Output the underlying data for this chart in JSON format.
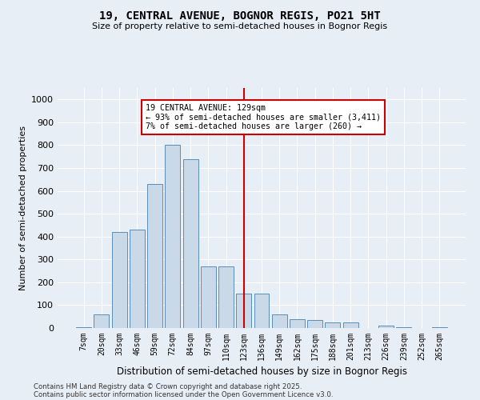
{
  "title1": "19, CENTRAL AVENUE, BOGNOR REGIS, PO21 5HT",
  "title2": "Size of property relative to semi-detached houses in Bognor Regis",
  "xlabel": "Distribution of semi-detached houses by size in Bognor Regis",
  "ylabel": "Number of semi-detached properties",
  "categories": [
    "7sqm",
    "20sqm",
    "33sqm",
    "46sqm",
    "59sqm",
    "72sqm",
    "84sqm",
    "97sqm",
    "110sqm",
    "123sqm",
    "136sqm",
    "149sqm",
    "162sqm",
    "175sqm",
    "188sqm",
    "201sqm",
    "213sqm",
    "226sqm",
    "239sqm",
    "252sqm",
    "265sqm"
  ],
  "values": [
    2,
    60,
    420,
    430,
    630,
    800,
    740,
    270,
    270,
    150,
    150,
    60,
    40,
    35,
    25,
    25,
    0,
    10,
    5,
    0,
    2
  ],
  "bar_color": "#c9d9e8",
  "bar_edge_color": "#5b8db8",
  "vline_x": 9,
  "vline_color": "#cc0000",
  "annotation_text": "19 CENTRAL AVENUE: 129sqm\n← 93% of semi-detached houses are smaller (3,411)\n7% of semi-detached houses are larger (260) →",
  "annotation_box_color": "#cc0000",
  "background_color": "#e8eef5",
  "grid_color": "#ffffff",
  "footer1": "Contains HM Land Registry data © Crown copyright and database right 2025.",
  "footer2": "Contains public sector information licensed under the Open Government Licence v3.0.",
  "ylim": [
    0,
    1050
  ],
  "yticks": [
    0,
    100,
    200,
    300,
    400,
    500,
    600,
    700,
    800,
    900,
    1000
  ]
}
